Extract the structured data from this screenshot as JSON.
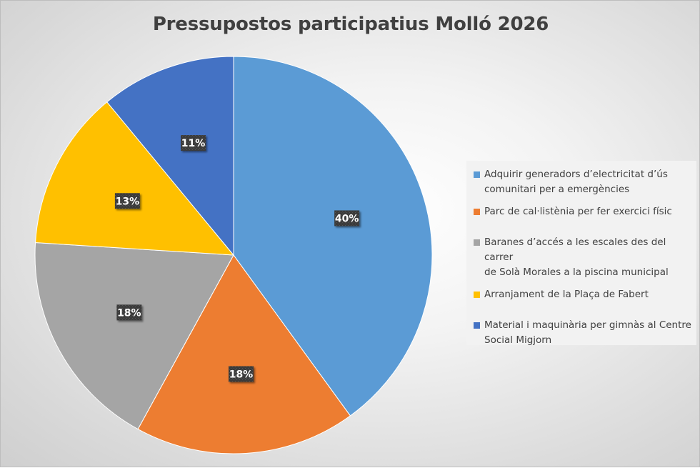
{
  "chart_data": {
    "type": "pie",
    "title": "Pressupostos participatius Molló 2026",
    "categories": [
      "Adquirir generadors d’electricitat d’ús comunitari per a emergències",
      "Parc de cal·listènia per fer exercici físic",
      "Baranes d’accés a les escales des del carrer de Solà Morales a la piscina municipal",
      "Arranjament de la Plaça de Fabert",
      "Material i maquinària per gimnàs al Centre Social Migjorn"
    ],
    "values": [
      40,
      18,
      18,
      13,
      11
    ],
    "data_labels": [
      "40%",
      "18%",
      "18%",
      "13%",
      "11%"
    ],
    "colors": [
      "#5b9bd5",
      "#ed7d31",
      "#a5a5a5",
      "#ffc000",
      "#4472c4"
    ],
    "legend_position": "right"
  },
  "legend": {
    "lines": [
      [
        "Adquirir generadors d’electricitat d’ús",
        "comunitari per a emergències"
      ],
      [
        "Parc de cal·listènia per fer exercici físic"
      ],
      [
        "Baranes d’accés a les escales des del carrer",
        "de Solà Morales a la piscina municipal"
      ],
      [
        "Arranjament de la Plaça de Fabert"
      ],
      [
        "Material i maquinària per gimnàs al Centre",
        "Social Migjorn"
      ]
    ]
  }
}
